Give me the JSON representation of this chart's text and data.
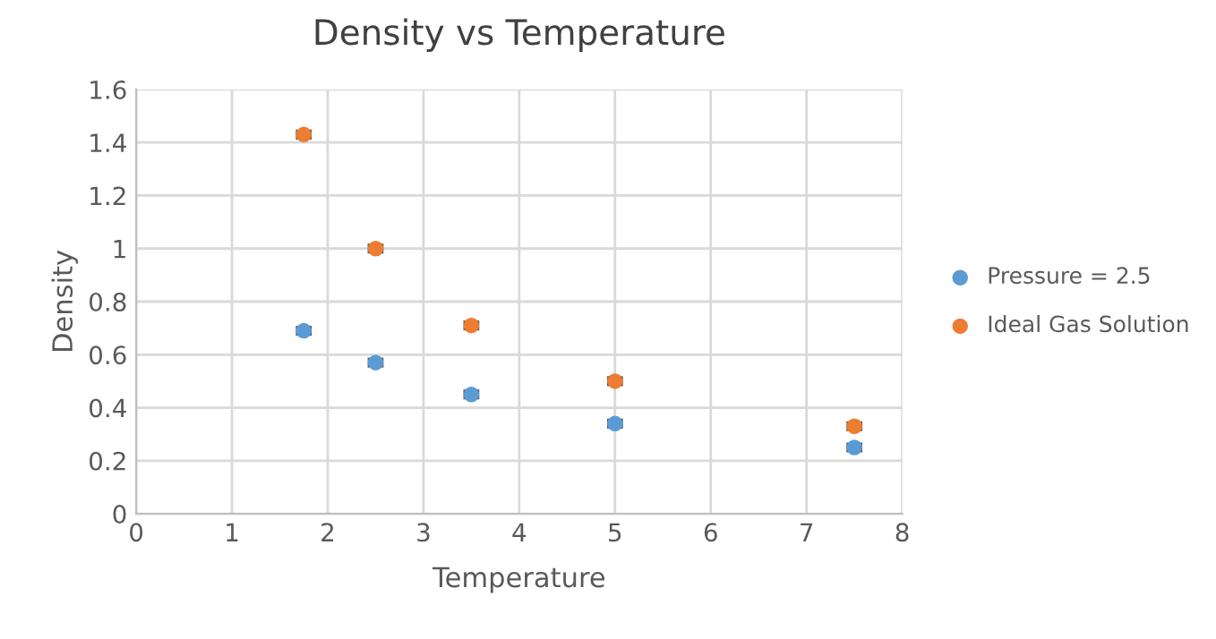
{
  "chart_data": {
    "type": "scatter",
    "title": "Density vs Temperature",
    "xlabel": "Temperature",
    "ylabel": "Density",
    "x": [
      1.75,
      2.5,
      3.5,
      5,
      7.5
    ],
    "series": [
      {
        "name": "Pressure = 2.5",
        "color": "#5b9bd5",
        "values": [
          0.69,
          0.57,
          0.45,
          0.34,
          0.25
        ],
        "xerrors": [
          0.07,
          0.07,
          0.07,
          0.07,
          0.07
        ]
      },
      {
        "name": "Ideal Gas Solution",
        "color": "#ed7d31",
        "values": [
          1.43,
          1.0,
          0.71,
          0.5,
          0.33
        ],
        "xerrors": [
          0.07,
          0.07,
          0.07,
          0.07,
          0.07
        ]
      }
    ],
    "xlim": [
      0,
      8
    ],
    "xticks": [
      0,
      1,
      2,
      3,
      4,
      5,
      6,
      7,
      8
    ],
    "ylim": [
      0,
      1.6
    ],
    "yticks": [
      0,
      0.2,
      0.4,
      0.6,
      0.8,
      1,
      1.2,
      1.4,
      1.6
    ],
    "grid": true,
    "legend": "right",
    "marker": "circle"
  }
}
